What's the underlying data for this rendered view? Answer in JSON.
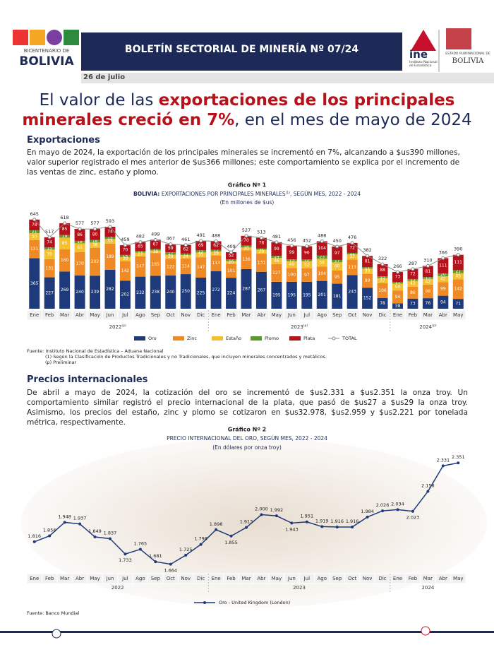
{
  "header": {
    "bicentenario": "BICENTENARIO DE",
    "bolivia": "BOLIVIA",
    "bulletin": "BOLETÍN SECTORIAL DE MINERÍA Nº 07/24",
    "ine": "ine",
    "ine_name": "Instituto Nacional de Estadística",
    "estado": "ESTADO PLURINACIONAL DE",
    "estado_bolivia": "BOLIVIA",
    "date": "26 de julio"
  },
  "headline": {
    "part1": "El valor de las ",
    "part2": "exportaciones de los principales minerales creció en 7%",
    "part3": ", en el mes de mayo de 2024"
  },
  "section1": {
    "heading": "Exportaciones",
    "text": "En mayo de 2024, la exportación de los principales minerales se incrementó en 7%, alcanzando a $us390 millones, valor superior registrado el mes anterior de $us366 millones; este comportamiento se explica por el incremento de las ventas de zinc, estaño y plomo."
  },
  "notes1": {
    "source": "Fuente: Instituto Nacional de Estadística – Aduana Nacional",
    "note1": "(1) Según la Clasificación de Productos Tradicionales y no Tradicionales, que incluyen minerales concentrados y metálicos.",
    "note2": "(p) Preliminar"
  },
  "section2": {
    "heading": "Precios internacionales",
    "text": "De abril a mayo de 2024, la cotización del oro se incrementó de $us2.331 a $us2.351 la onza troy. Un comportamiento similar registró el precio internacional de la plata, que pasó de $us27 a $us29 la onza troy. Asimismo, los precios del estaño, zinc y plomo se cotizaron en $us32.978, $us2.959 y $us2.221 por tonelada métrica, respectivamente."
  },
  "notes2": {
    "source": "Fuente: Banco Mundial"
  },
  "chart_data": [
    {
      "type": "stacked_bar",
      "label": "Gráfico Nº 1",
      "title_pre": "BOLIVIA: ",
      "title_main": "EXPORTACIONES POR PRINCIPALES MINERALES",
      "title_sup": "(1)",
      "title_post": ", SEGÚN MES, 2022 - 2024",
      "subtitle": "(En millones de $us)",
      "categories": [
        "Ene",
        "Feb",
        "Mar",
        "Abr",
        "May",
        "Jun",
        "Jul",
        "Ago",
        "Sep",
        "Oct",
        "Nov",
        "Dic",
        "Ene",
        "Feb",
        "Mar",
        "Abr",
        "May",
        "Jun",
        "Jul",
        "Ago",
        "Sep",
        "Oct",
        "Nov",
        "Dic",
        "Ene",
        "Feb",
        "Mar",
        "Abr",
        "May"
      ],
      "years": [
        {
          "label": "2022",
          "sup": "(p)"
        },
        {
          "label": "2023",
          "sup": "(p)"
        },
        {
          "label": "2024",
          "sup": "(p)"
        }
      ],
      "ylim": [
        0,
        700
      ],
      "series": [
        {
          "name": "Oro",
          "color": "#1f3a7a",
          "values": [
            365,
            227,
            269,
            240,
            239,
            282,
            202,
            232,
            238,
            240,
            250,
            225,
            272,
            224,
            287,
            267,
            195,
            195,
            195,
            201,
            181,
            243,
            152,
            78,
            38,
            73,
            76,
            94,
            71
          ]
        },
        {
          "name": "Zinc",
          "color": "#f08a24",
          "values": [
            131,
            131,
            160,
            170,
            202,
            189,
            142,
            147,
            165,
            122,
            114,
            147,
            113,
            101,
            136,
            131,
            127,
            100,
            97,
            104,
            95,
            113,
            99,
            106,
            94,
            86,
            98,
            99,
            142
          ]
        },
        {
          "name": "Estaño",
          "color": "#f5c030",
          "values": [
            50,
            70,
            85,
            63,
            38,
            33,
            30,
            27,
            18,
            29,
            24,
            35,
            29,
            20,
            20,
            29,
            46,
            49,
            52,
            56,
            60,
            37,
            39,
            37,
            50,
            43,
            42,
            42,
            45
          ]
        },
        {
          "name": "Plomo",
          "color": "#5a9a2a",
          "values": [
            21,
            15,
            19,
            18,
            18,
            15,
            15,
            11,
            11,
            17,
            11,
            15,
            12,
            12,
            14,
            8,
            14,
            13,
            12,
            23,
            17,
            11,
            11,
            13,
            11,
            13,
            13,
            20,
            21
          ]
        },
        {
          "name": "Plata",
          "color": "#b5121b",
          "values": [
            78,
            74,
            85,
            86,
            80,
            74,
            70,
            65,
            67,
            59,
            62,
            69,
            62,
            52,
            70,
            78,
            99,
            99,
            96,
            104,
            97,
            72,
            81,
            88,
            73,
            72,
            81,
            111,
            111
          ]
        },
        {
          "name": "TOTAL",
          "color": "#8a8a8a",
          "line": true,
          "values": [
            645,
            517,
            618,
            577,
            577,
            593,
            459,
            482,
            499,
            467,
            461,
            491,
            488,
            409,
            527,
            513,
            481,
            456,
            452,
            488,
            450,
            476,
            382,
            322,
            266,
            287,
            310,
            366,
            390
          ]
        }
      ]
    },
    {
      "type": "line",
      "label": "Gráfico Nº 2",
      "title": "PRECIO INTERNACIONAL DEL ORO, SEGÚN MES, 2022 - 2024",
      "subtitle": "(En dólares por onza troy)",
      "categories": [
        "Ene",
        "Feb",
        "Mar",
        "Abr",
        "May",
        "Jun",
        "Jul",
        "Ago",
        "Sep",
        "Oct",
        "Nov",
        "Dic",
        "Ene",
        "Feb",
        "Mar",
        "Abr",
        "May",
        "Jun",
        "Jul",
        "Ago",
        "Sep",
        "Oct",
        "Nov",
        "Dic",
        "Ene",
        "Feb",
        "Mar",
        "Abr",
        "May"
      ],
      "years": [
        "2022",
        "2023",
        "2024"
      ],
      "ylim": [
        1600,
        2400
      ],
      "series": [
        {
          "name": "Oro - United Kingdom (London)",
          "color": "#1f3a7a",
          "values": [
            1816,
            1856,
            1948,
            1937,
            1849,
            1837,
            1733,
            1765,
            1681,
            1664,
            1725,
            1798,
            1898,
            1855,
            1913,
            2000,
            1992,
            1943,
            1951,
            1919,
            1916,
            1916,
            1984,
            2026,
            2034,
            2023,
            2158,
            2331,
            2351
          ],
          "value_labels": [
            "1.816",
            "1.856",
            "1.948",
            "1.937",
            "1.849",
            "1.837",
            "1.733",
            "1.765",
            "1.681",
            "1.664",
            "1.725",
            "1.798",
            "1.898",
            "1.855",
            "1.913",
            "2.000",
            "1.992",
            "1.943",
            "1.951",
            "1.919",
            "1.916",
            "1.916",
            "1.984",
            "2.026",
            "2.034",
            "2.023",
            "2.158",
            "2.331",
            "2.351"
          ]
        }
      ]
    }
  ]
}
